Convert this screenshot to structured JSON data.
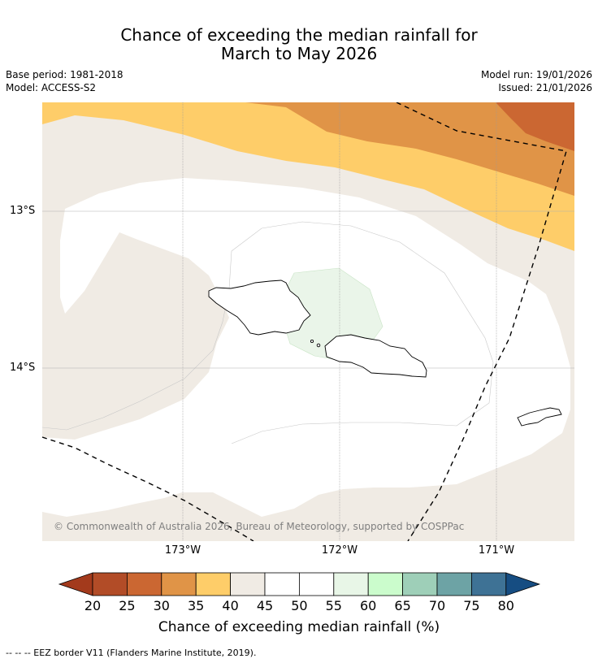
{
  "title": {
    "line1": "Chance of exceeding the median rainfall for",
    "line2": "March to May 2026"
  },
  "meta": {
    "base_period": "Base period: 1981-2018",
    "model": "Model: ACCESS-S2",
    "model_run": "Model run: 19/01/2026",
    "issued": "Issued: 21/01/2026"
  },
  "map": {
    "latitude_labels": [
      "13°S",
      "14°S"
    ],
    "longitude_labels": [
      "173°W",
      "172°W",
      "171°W"
    ],
    "copyright": "© Commonwealth of Australia 2026, Bureau of Meteorology, supported by COSPPac"
  },
  "colorbar": {
    "ticks": [
      "20",
      "25",
      "30",
      "35",
      "40",
      "45",
      "50",
      "55",
      "60",
      "65",
      "70",
      "75",
      "80"
    ],
    "colors": [
      "#a33a1c",
      "#b24c27",
      "#cb6732",
      "#e09447",
      "#fecd69",
      "#f0ebe4",
      "#ffffff",
      "#ffffff",
      "#e8f6e7",
      "#cbfccc",
      "#9ecfb8",
      "#6da3a5",
      "#3e7295",
      "#164d82"
    ],
    "title": "Chance of exceeding median rainfall (%)"
  },
  "legend_note": "--  --  -- EEZ border V11 (Flanders Marine Institute, 2019)."
}
